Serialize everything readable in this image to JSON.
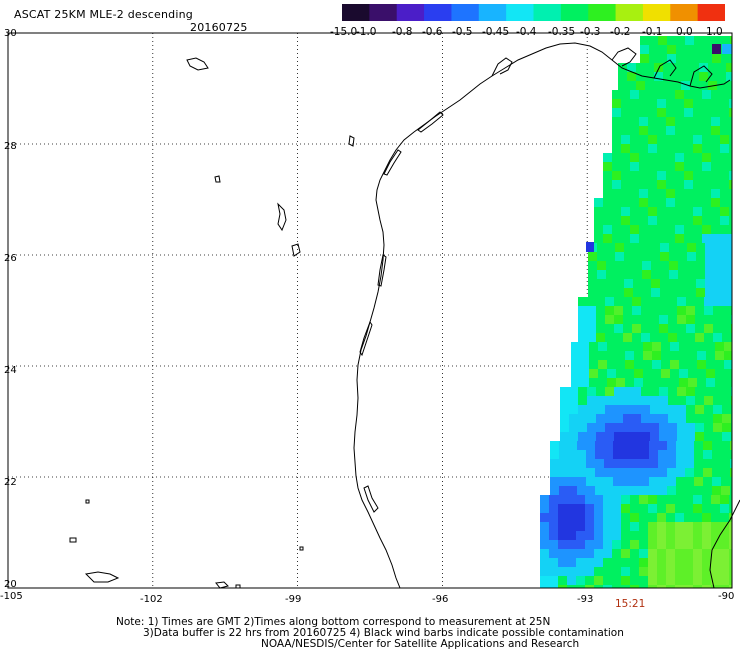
{
  "header": {
    "title": "ASCAT 25KM MLE-2 descending",
    "date": "20160725"
  },
  "colorbar": {
    "labels": [
      "-15.0",
      "-1.0",
      "-0.8",
      "-0.6",
      "-0.5",
      "-0.45",
      "-0.4",
      "-0.35",
      "-0.3",
      "-0.2",
      "-0.1",
      "0.0",
      "1.0"
    ],
    "colors": [
      "#1a0a2e",
      "#3a0f6a",
      "#4b1ec8",
      "#2a3ef0",
      "#1e74ff",
      "#18b4ff",
      "#12e6f5",
      "#00f0b0",
      "#00f060",
      "#2ef020",
      "#a8f010",
      "#f0e000",
      "#f09000",
      "#f03010"
    ]
  },
  "map": {
    "lat_labels": [
      "30",
      "28",
      "26",
      "24",
      "22",
      "20"
    ],
    "lon_labels": [
      "-105",
      "-102",
      "-99",
      "-96",
      "-93",
      "-90"
    ],
    "lat_range": [
      20,
      30
    ],
    "lon_range": [
      -105,
      -90
    ],
    "pass_time": "15:21"
  },
  "notes": {
    "line1": "Note: 1) Times are GMT 2)Times along bottom correspond to measurement at 25N",
    "line2": "3)Data buffer is 22 hrs from 20160725 4) Black wind barbs indicate possible contamination",
    "line3": "NOAA/NESDIS/Center for Satellite Applications and Research"
  }
}
